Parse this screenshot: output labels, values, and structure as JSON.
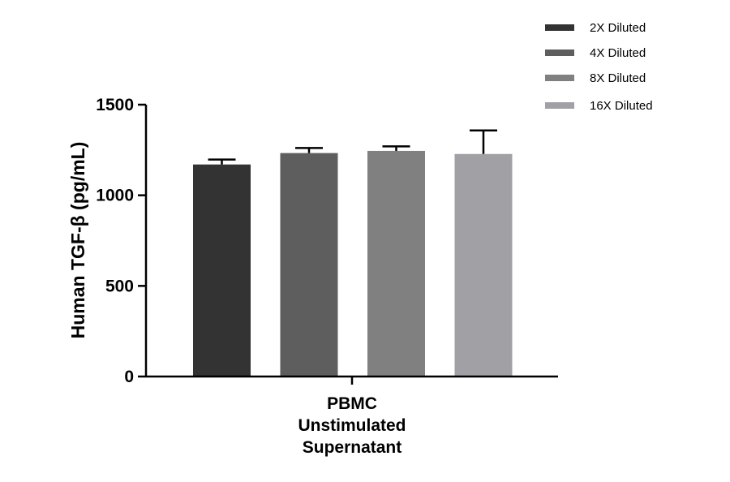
{
  "chart_data": {
    "type": "bar",
    "title": "",
    "xlabel": "",
    "ylabel": "Human TGF-β (pg/mL)",
    "category_label_lines": [
      "PBMC",
      "Unstimulated",
      "Supernatant"
    ],
    "ylim": [
      0,
      1500
    ],
    "yticks": [
      0,
      500,
      1000,
      1500
    ],
    "grid": false,
    "legend_position": "top-right",
    "series": [
      {
        "name": "2X Diluted",
        "value": 1170,
        "error": 27,
        "color": "#333333"
      },
      {
        "name": "4X Diluted",
        "value": 1233,
        "error": 28,
        "color": "#5e5e5e"
      },
      {
        "name": "8X Diluted",
        "value": 1245,
        "error": 25,
        "color": "#808080"
      },
      {
        "name": "16X Diluted",
        "value": 1228,
        "error": 130,
        "color": "#a1a1a5"
      }
    ]
  }
}
